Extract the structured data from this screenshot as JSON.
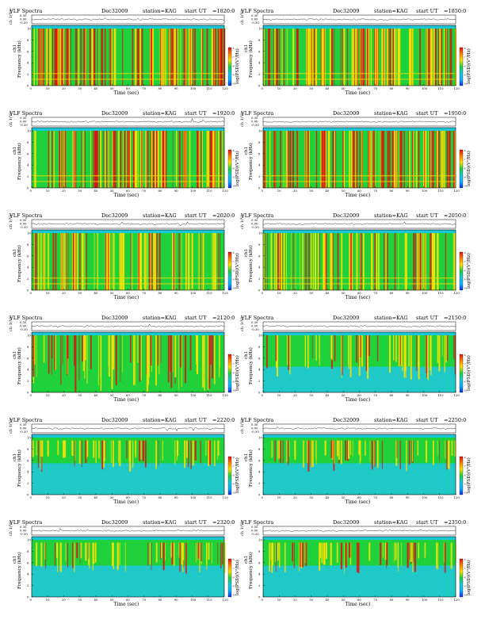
{
  "colors": {
    "background": "#ffffff",
    "spectrogram_base": "#1fd13a",
    "band_top": "#18c8d8",
    "band_low": "#20c8e0",
    "stripe": "#ffe000",
    "hot": "#e01010",
    "trace": "#000000",
    "colorbar": [
      "#1030e0",
      "#10b0ff",
      "#18c8d8",
      "#20d040",
      "#ffe000",
      "#ff8000",
      "#e01010"
    ]
  },
  "common": {
    "label": "VLF Spectra",
    "date": "Dec32009",
    "station": "station=KAG",
    "start_prefix": "start  UT",
    "y_top_label": "ch 1(V)",
    "y_top_ticks": [
      "0.30",
      "0.00",
      "-0.30"
    ],
    "y_label": "Frequency  (kHz)",
    "y_ch_label": "ch1",
    "y_ticks": [
      "0",
      "2",
      "4",
      "6",
      "8",
      "10"
    ],
    "x_label": "Time  (sec)",
    "x_ticks": [
      "0",
      "10",
      "20",
      "30",
      "40",
      "50",
      "60",
      "70",
      "80",
      "90",
      "100",
      "110",
      "120"
    ],
    "colorbar_label": "log(PSD)(V²/Hz)",
    "colorbar_ticks": [
      "-6",
      "-7",
      "-8",
      "-9",
      "-10"
    ]
  },
  "panels": [
    {
      "start_ut": "=1820:0",
      "activity": "high_full"
    },
    {
      "start_ut": "=1850:0",
      "activity": "high_full"
    },
    {
      "start_ut": "=1920:0",
      "activity": "high_full"
    },
    {
      "start_ut": "=1950:0",
      "activity": "high_full"
    },
    {
      "start_ut": "=2020:0",
      "activity": "medium_full"
    },
    {
      "start_ut": "=2050:0",
      "activity": "medium_full"
    },
    {
      "start_ut": "=2120:0",
      "activity": "mixed"
    },
    {
      "start_ut": "=2150:0",
      "activity": "mixed_low"
    },
    {
      "start_ut": "=2220:0",
      "activity": "upper_only"
    },
    {
      "start_ut": "=2250:0",
      "activity": "upper_only"
    },
    {
      "start_ut": "=2320:0",
      "activity": "upper_only"
    },
    {
      "start_ut": "=2350:0",
      "activity": "upper_only"
    }
  ],
  "chart_data": {
    "type": "heatmap",
    "title": "VLF Spectra",
    "xlabel": "Time  (sec)",
    "ylabel": "Frequency  (kHz)",
    "xlim": [
      0,
      120
    ],
    "ylim": [
      0,
      10
    ],
    "colorbar_range": [
      -10,
      -6
    ],
    "series": [
      {
        "start_ut": "=1820:0"
      },
      {
        "start_ut": "=1850:0"
      },
      {
        "start_ut": "=1920:0"
      },
      {
        "start_ut": "=1950:0"
      },
      {
        "start_ut": "=2020:0"
      },
      {
        "start_ut": "=2050:0"
      },
      {
        "start_ut": "=2120:0"
      },
      {
        "start_ut": "=2150:0"
      },
      {
        "start_ut": "=2220:0"
      },
      {
        "start_ut": "=2250:0"
      },
      {
        "start_ut": "=2320:0"
      },
      {
        "start_ut": "=2350:0"
      }
    ]
  }
}
